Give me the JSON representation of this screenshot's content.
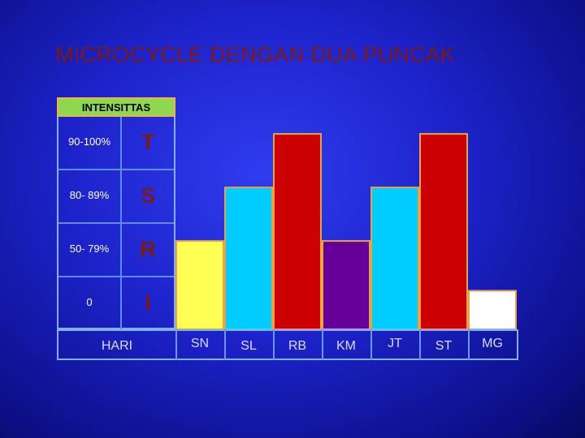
{
  "title": "MICROCYCLE DENGAN DUA PUNCAK",
  "table": {
    "header": "INTENSITTAS",
    "rows": [
      {
        "range": "90-100%",
        "level": "T"
      },
      {
        "range": "80- 89%",
        "level": "S"
      },
      {
        "range": "50- 79%",
        "level": "R"
      },
      {
        "range": "0",
        "level": "I"
      }
    ],
    "xaxis_title": "HARI"
  },
  "chart_data": {
    "type": "bar",
    "title": "MICROCYCLE DENGAN DUA PUNCAK",
    "xlabel": "HARI",
    "ylabel": "INTENSITTAS",
    "y_levels": [
      "I",
      "R",
      "S",
      "T"
    ],
    "categories": [
      "SN",
      "SL",
      "RB",
      "KM",
      "JT",
      "ST",
      "MG"
    ],
    "values": [
      1.65,
      2.65,
      3.65,
      1.65,
      2.65,
      3.65,
      0.72
    ],
    "ylim": [
      0,
      4
    ],
    "colors": [
      "#ffff55",
      "#00ccff",
      "#cc0000",
      "#660099",
      "#00ccff",
      "#cc0000",
      "#ffffff"
    ],
    "bar_border": "#e9a341",
    "grid": false,
    "legend": "none"
  }
}
